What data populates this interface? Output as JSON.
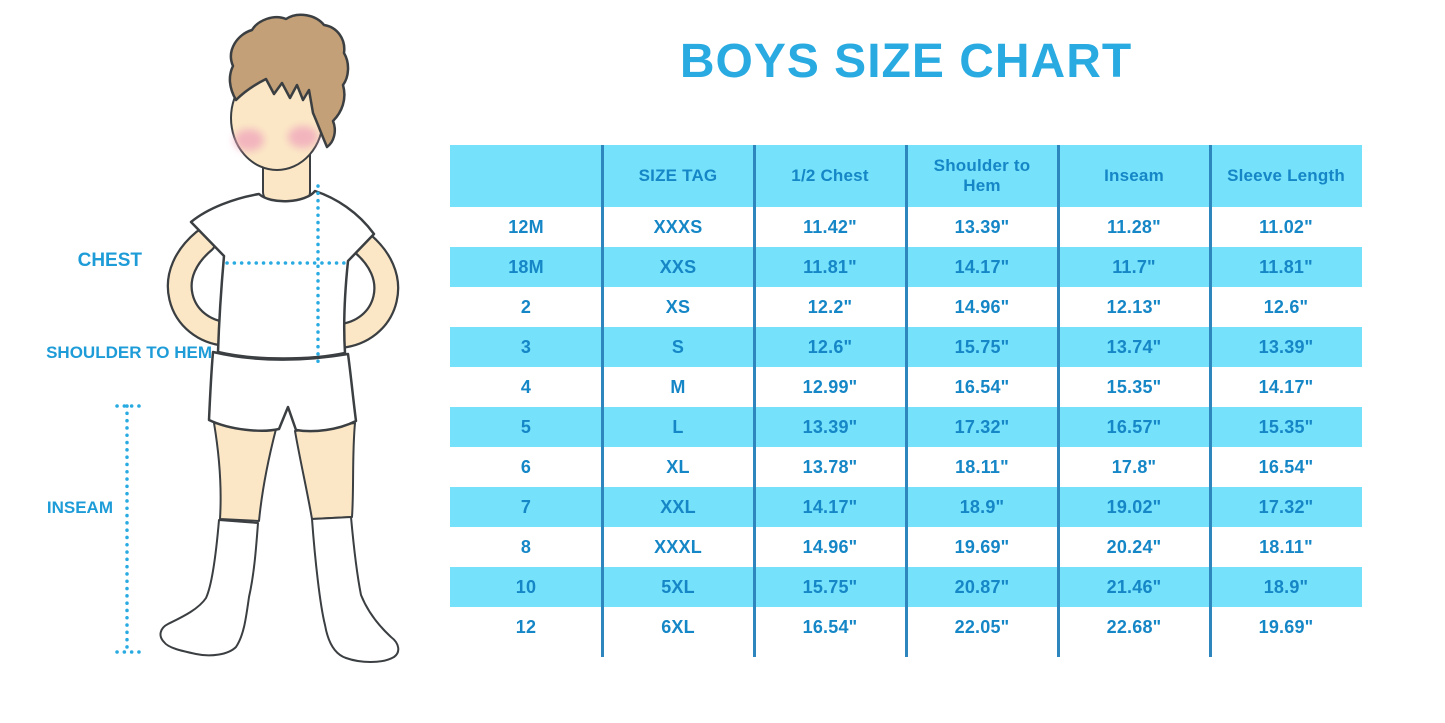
{
  "title": "BOYS SIZE CHART",
  "figure": {
    "labels": {
      "chest": "CHEST",
      "shoulder_to_hem": "SHOULDER TO HEM",
      "inseam": "INSEAM"
    }
  },
  "chart_data": {
    "type": "table",
    "title": "BOYS SIZE CHART",
    "columns": [
      "",
      "SIZE TAG",
      "1/2 Chest",
      "Shoulder to Hem",
      "Inseam",
      "Sleeve Length"
    ],
    "rows": [
      [
        "12M",
        "XXXS",
        "11.42\"",
        "13.39\"",
        "11.28\"",
        "11.02\""
      ],
      [
        "18M",
        "XXS",
        "11.81\"",
        "14.17\"",
        "11.7\"",
        "11.81\""
      ],
      [
        "2",
        "XS",
        "12.2\"",
        "14.96\"",
        "12.13\"",
        "12.6\""
      ],
      [
        "3",
        "S",
        "12.6\"",
        "15.75\"",
        "13.74\"",
        "13.39\""
      ],
      [
        "4",
        "M",
        "12.99\"",
        "16.54\"",
        "15.35\"",
        "14.17\""
      ],
      [
        "5",
        "L",
        "13.39\"",
        "17.32\"",
        "16.57\"",
        "15.35\""
      ],
      [
        "6",
        "XL",
        "13.78\"",
        "18.11\"",
        "17.8\"",
        "16.54\""
      ],
      [
        "7",
        "XXL",
        "14.17\"",
        "18.9\"",
        "19.02\"",
        "17.32\""
      ],
      [
        "8",
        "XXXL",
        "14.96\"",
        "19.69\"",
        "20.24\"",
        "18.11\""
      ],
      [
        "10",
        "5XL",
        "15.75\"",
        "20.87\"",
        "21.46\"",
        "18.9\""
      ],
      [
        "12",
        "6XL",
        "16.54\"",
        "22.05\"",
        "22.68\"",
        "19.69\""
      ]
    ],
    "row_striping": "white/blue alternating, header blue",
    "grid": "vertical column dividers only"
  },
  "colors": {
    "accent_blue": "#29ABE2",
    "table_fill_blue": "#75E1FB",
    "table_text_blue": "#1586C6",
    "divider_blue": "#2E86BF",
    "label_blue": "#1E9CD8",
    "skin": "#FBE7C6",
    "hair": "#C3A077",
    "cheek": "#F0A8BC",
    "outline": "#3B3F42"
  }
}
